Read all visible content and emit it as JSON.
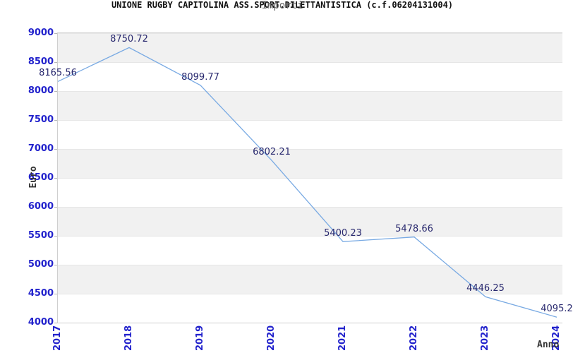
{
  "header": {
    "title": "UNIONE RUGBY CAPITOLINA ASS.SPORT.DILETTANTISTICA (c.f.06204131004)",
    "subtitle": "Importi"
  },
  "chart_data": {
    "type": "line",
    "title": "UNIONE RUGBY CAPITOLINA ASS.SPORT.DILETTANTISTICA (c.f.06204131004)",
    "subtitle": "Importi",
    "x": [
      "2017",
      "2018",
      "2019",
      "2020",
      "2021",
      "2022",
      "2023",
      "2024"
    ],
    "series": [
      {
        "name": "Importi",
        "values": [
          8165.56,
          8750.72,
          8099.77,
          6802.21,
          5400.23,
          5478.66,
          4446.25,
          4095.2
        ]
      }
    ],
    "point_labels": [
      "8165.56",
      "8750.72",
      "8099.77",
      "6802.21",
      "5400.23",
      "5478.66",
      "4446.25",
      "4095.2"
    ],
    "xlabel": "Anno",
    "ylabel": "Euro",
    "ylim": [
      4000,
      9000
    ],
    "ytick_step": 500,
    "yticks": [
      "9000",
      "8500",
      "8000",
      "7500",
      "7000",
      "6500",
      "6000",
      "5500",
      "5000",
      "4500",
      "4000"
    ],
    "grid": "alternating-horizontal-bands",
    "legend": "none"
  },
  "colors": {
    "tick_label": "#2222cc",
    "data_label": "#28286e",
    "line": "#79aae3",
    "band_gray": "#f1f1f1",
    "plot_border": "#cfcfcf",
    "axis_title": "#333333",
    "title": "#111111",
    "subtitle": "#666666"
  }
}
